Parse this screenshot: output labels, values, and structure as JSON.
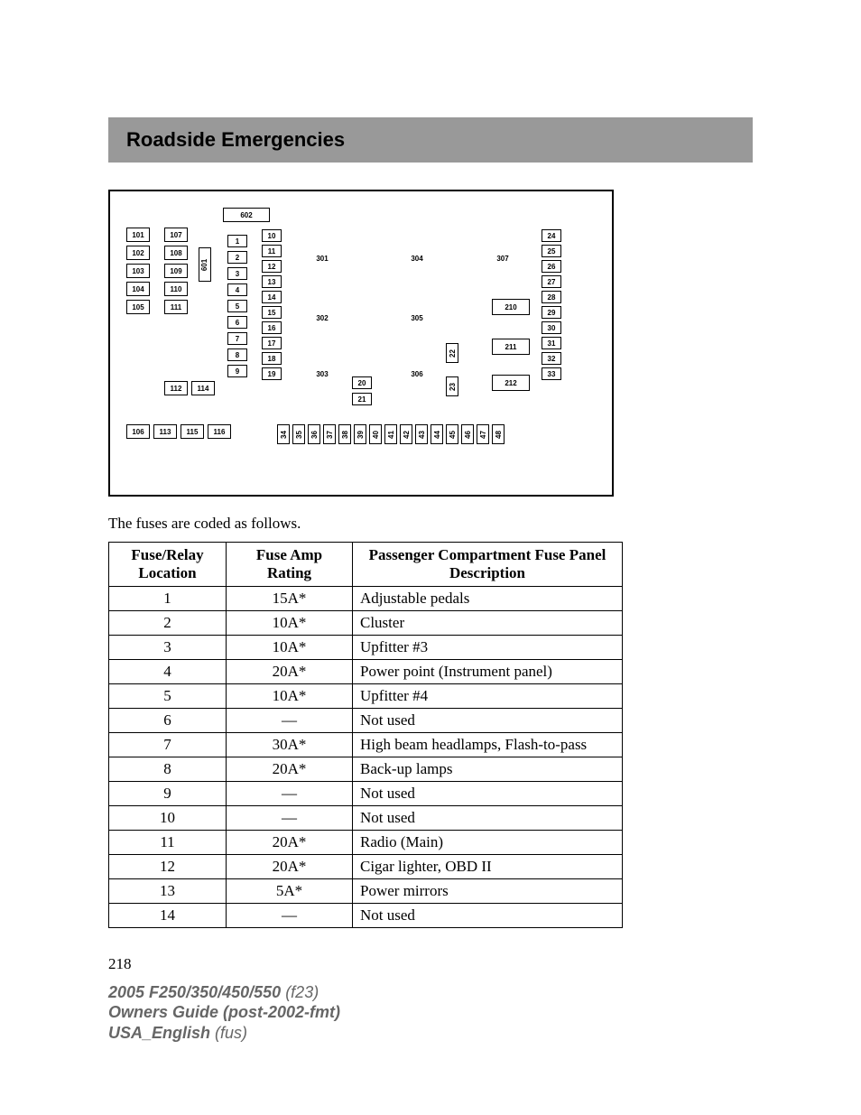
{
  "section_title": "Roadside Emergencies",
  "intro_text": "The fuses are coded as follows.",
  "page_number": "218",
  "table": {
    "headers": {
      "loc": "Fuse/Relay Location",
      "amp": "Fuse Amp Rating",
      "desc": "Passenger Compartment Fuse Panel Description"
    },
    "rows": [
      {
        "loc": "1",
        "amp": "15A*",
        "desc": "Adjustable pedals"
      },
      {
        "loc": "2",
        "amp": "10A*",
        "desc": "Cluster"
      },
      {
        "loc": "3",
        "amp": "10A*",
        "desc": "Upfitter #3"
      },
      {
        "loc": "4",
        "amp": "20A*",
        "desc": "Power point (Instrument panel)"
      },
      {
        "loc": "5",
        "amp": "10A*",
        "desc": "Upfitter #4"
      },
      {
        "loc": "6",
        "amp": "—",
        "desc": "Not used"
      },
      {
        "loc": "7",
        "amp": "30A*",
        "desc": "High beam headlamps, Flash-to-pass"
      },
      {
        "loc": "8",
        "amp": "20A*",
        "desc": "Back-up lamps"
      },
      {
        "loc": "9",
        "amp": "—",
        "desc": "Not used"
      },
      {
        "loc": "10",
        "amp": "—",
        "desc": "Not used"
      },
      {
        "loc": "11",
        "amp": "20A*",
        "desc": "Radio (Main)"
      },
      {
        "loc": "12",
        "amp": "20A*",
        "desc": "Cigar lighter, OBD II"
      },
      {
        "loc": "13",
        "amp": "5A*",
        "desc": "Power mirrors"
      },
      {
        "loc": "14",
        "amp": "—",
        "desc": "Not used"
      }
    ]
  },
  "diagram": {
    "col_left_a": [
      "101",
      "102",
      "103",
      "104",
      "105"
    ],
    "col_left_b": [
      "107",
      "108",
      "109",
      "110",
      "111"
    ],
    "col_left_extra": [
      "112",
      "114"
    ],
    "col_left_bottom": [
      "106",
      "113",
      "115",
      "116"
    ],
    "top_wide": "602",
    "vert_601": "601",
    "col_c": [
      "1",
      "2",
      "3",
      "4",
      "5",
      "6",
      "7",
      "8",
      "9"
    ],
    "col_d": [
      "10",
      "11",
      "12",
      "13",
      "14",
      "15",
      "16",
      "17",
      "18",
      "19"
    ],
    "relays_left": [
      "301",
      "302",
      "303"
    ],
    "relays_mid_top": [
      "304",
      "305",
      "306"
    ],
    "mid_20_21": [
      "20",
      "21"
    ],
    "mid_22_23": [
      "22",
      "23"
    ],
    "relays_right": [
      "307",
      "210",
      "211",
      "212"
    ],
    "col_right": [
      "24",
      "25",
      "26",
      "27",
      "28",
      "29",
      "30",
      "31",
      "32",
      "33"
    ],
    "bottom_row": [
      "34",
      "35",
      "36",
      "37",
      "38",
      "39",
      "40",
      "41",
      "42",
      "43",
      "44",
      "45",
      "46",
      "47",
      "48"
    ]
  },
  "footer": {
    "line1_bold": "2005 F250/350/450/550",
    "line1_light": "(f23)",
    "line2_bold": "Owners Guide (post-2002-fmt)",
    "line3_bold": "USA_English",
    "line3_light": "(fus)"
  }
}
